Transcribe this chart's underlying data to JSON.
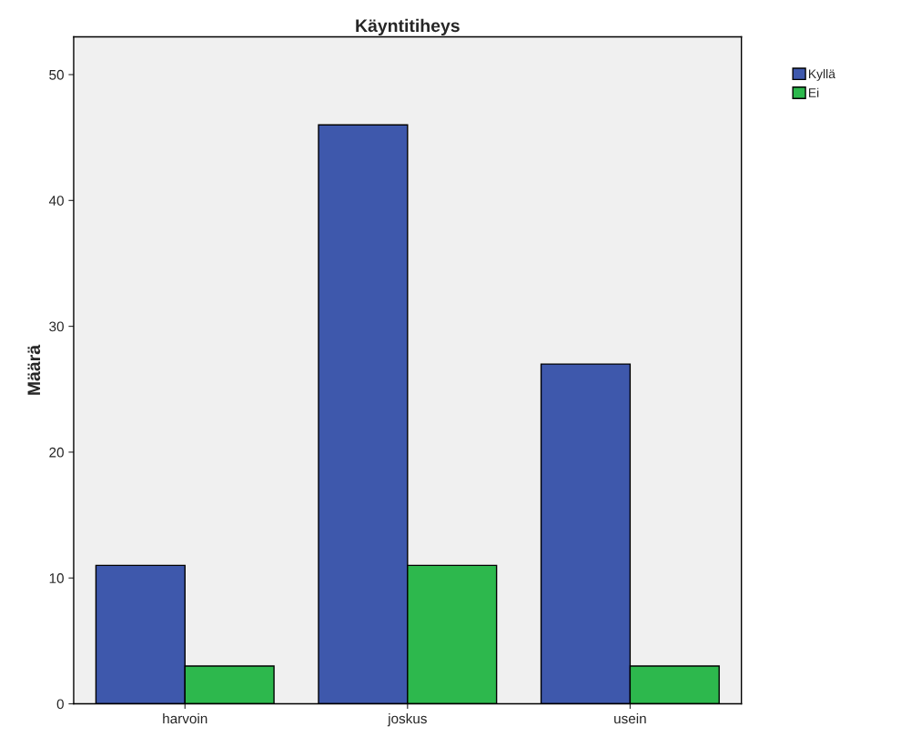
{
  "chart_data": {
    "type": "bar",
    "title": "Käyntitiheys",
    "ylabel": "Määrä",
    "categories": [
      "harvoin",
      "joskus",
      "usein"
    ],
    "series": [
      {
        "name": "Kyllä",
        "color": "#3e58ac",
        "values": [
          11,
          46,
          27
        ]
      },
      {
        "name": "Ei",
        "color": "#2db84d",
        "values": [
          3,
          11,
          3
        ]
      }
    ],
    "ylim": [
      0,
      53
    ],
    "yticks": [
      0,
      10,
      20,
      30,
      40,
      50
    ],
    "grid": false,
    "legend": "top right"
  }
}
